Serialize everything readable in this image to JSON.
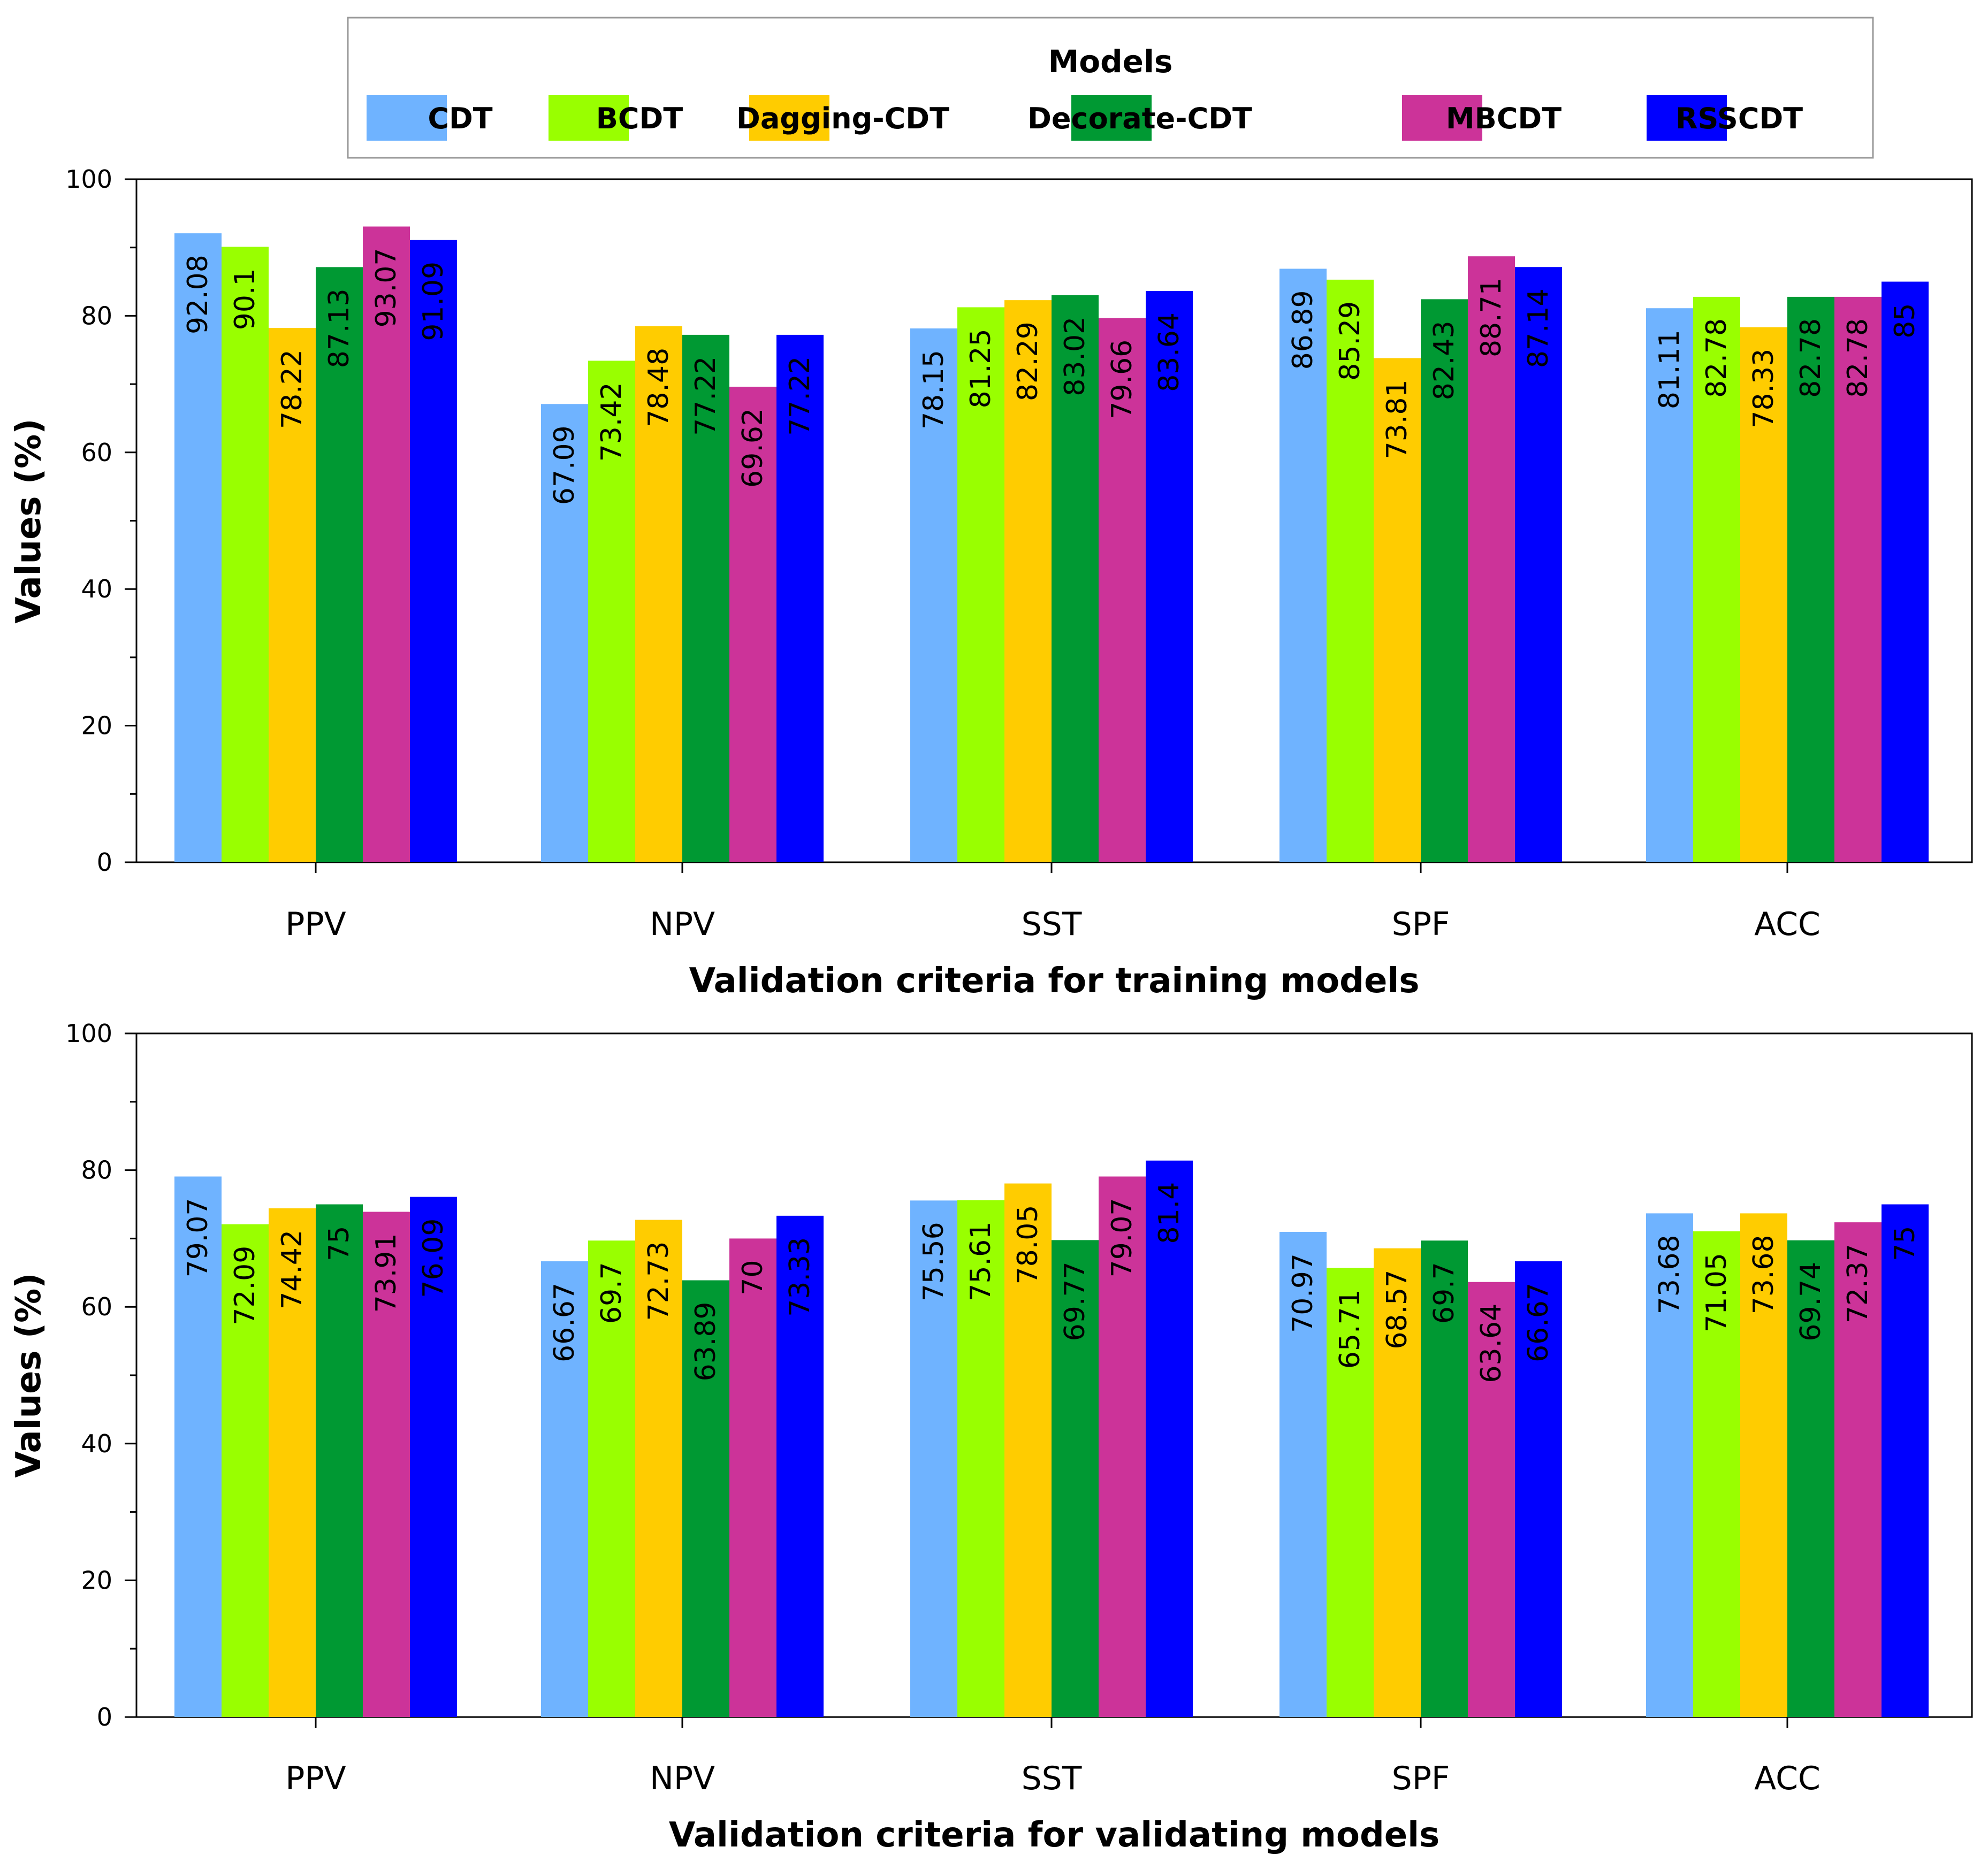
{
  "legend": {
    "title": "Models",
    "models": [
      "CDT",
      "BCDT",
      "Dagging-CDT",
      "Decorate-CDT",
      "MBCDT",
      "RSSCDT"
    ],
    "colors": [
      "#6fb3ff",
      "#99ff00",
      "#ffcc00",
      "#009933",
      "#cc3399",
      "#0000ff"
    ]
  },
  "chart_data": [
    {
      "type": "bar",
      "title": "",
      "xlabel": "Validation criteria for training models",
      "ylabel": "Values (%)",
      "ylim": [
        0,
        100
      ],
      "yticks": [
        0,
        20,
        40,
        60,
        80,
        100
      ],
      "categories": [
        "PPV",
        "NPV",
        "SST",
        "SPF",
        "ACC"
      ],
      "series": [
        {
          "name": "CDT",
          "values": [
            92.08,
            67.09,
            78.15,
            86.89,
            81.11
          ]
        },
        {
          "name": "BCDT",
          "values": [
            90.1,
            73.42,
            81.25,
            85.29,
            82.78
          ]
        },
        {
          "name": "Dagging-CDT",
          "values": [
            78.22,
            78.48,
            82.29,
            73.81,
            78.33
          ]
        },
        {
          "name": "Decorate-CDT",
          "values": [
            87.13,
            77.22,
            83.02,
            82.43,
            82.78
          ]
        },
        {
          "name": "MBCDT",
          "values": [
            93.07,
            69.62,
            79.66,
            88.71,
            82.78
          ]
        },
        {
          "name": "RSSCDT",
          "values": [
            91.09,
            77.22,
            83.64,
            87.14,
            85
          ]
        }
      ]
    },
    {
      "type": "bar",
      "title": "",
      "xlabel": "Validation criteria for validating models",
      "ylabel": "Values (%)",
      "ylim": [
        0,
        100
      ],
      "yticks": [
        0,
        20,
        40,
        60,
        80,
        100
      ],
      "categories": [
        "PPV",
        "NPV",
        "SST",
        "SPF",
        "ACC"
      ],
      "series": [
        {
          "name": "CDT",
          "values": [
            79.07,
            66.67,
            75.56,
            70.97,
            73.68
          ]
        },
        {
          "name": "BCDT",
          "values": [
            72.09,
            69.7,
            75.61,
            65.71,
            71.05
          ]
        },
        {
          "name": "Dagging-CDT",
          "values": [
            74.42,
            72.73,
            78.05,
            68.57,
            73.68
          ]
        },
        {
          "name": "Decorate-CDT",
          "values": [
            75,
            63.89,
            69.77,
            69.7,
            69.74
          ]
        },
        {
          "name": "MBCDT",
          "values": [
            73.91,
            70,
            79.07,
            63.64,
            72.37
          ]
        },
        {
          "name": "RSSCDT",
          "values": [
            76.09,
            73.33,
            81.4,
            66.67,
            75
          ]
        }
      ]
    }
  ]
}
